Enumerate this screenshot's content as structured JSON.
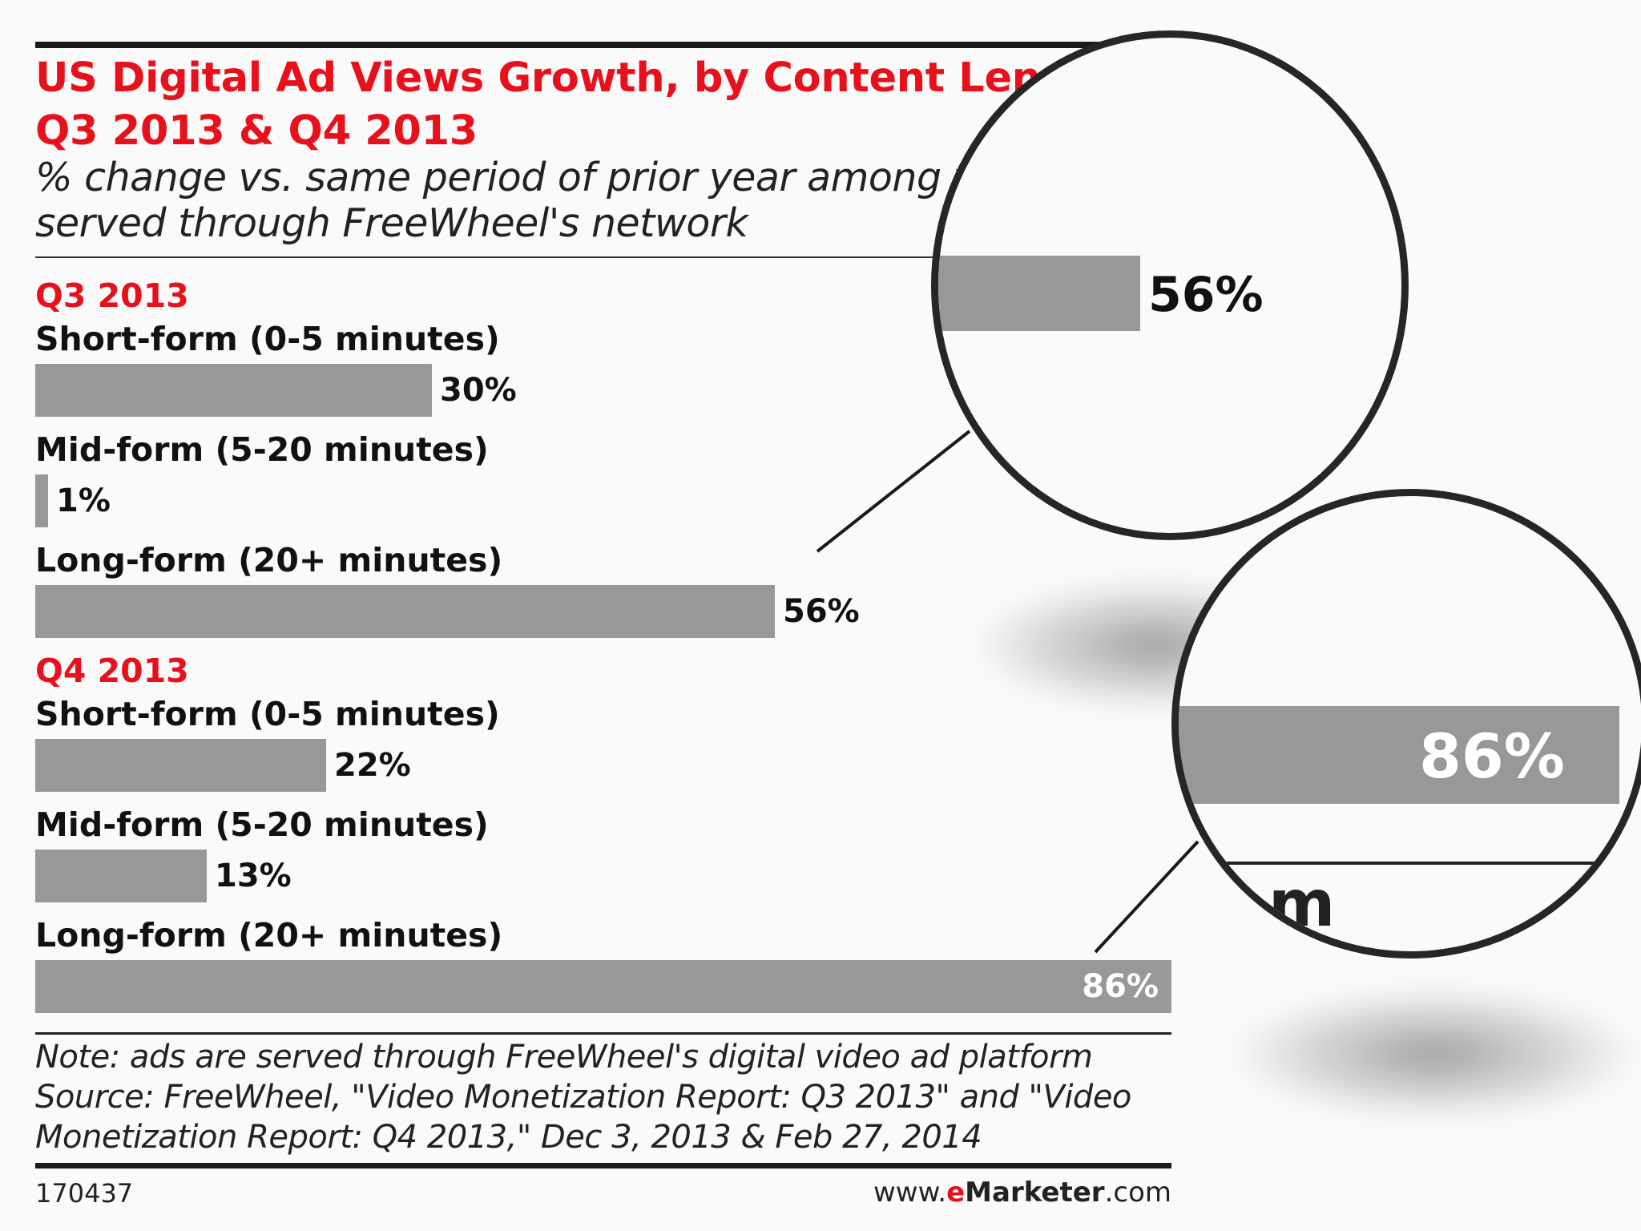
{
  "chart_data": {
    "type": "bar",
    "orientation": "horizontal",
    "title_line1": "US Digital Ad Views Growth, by Content Length",
    "title_line2": "Q3 2013 & Q4 2013",
    "subtitle_line1": "% change vs. same period of prior year among vide",
    "subtitle_line2": "served through FreeWheel's network",
    "xlim": [
      0,
      86
    ],
    "groups": [
      {
        "label": "Q3 2013",
        "items": [
          {
            "label": "Short-form (0-5 minutes)",
            "value": 30,
            "display": "30%"
          },
          {
            "label": "Mid-form (5-20 minutes)",
            "value": 1,
            "display": "1%"
          },
          {
            "label": "Long-form (20+ minutes)",
            "value": 56,
            "display": "56%"
          }
        ]
      },
      {
        "label": "Q4 2013",
        "items": [
          {
            "label": "Short-form (0-5 minutes)",
            "value": 22,
            "display": "22%"
          },
          {
            "label": "Mid-form (5-20 minutes)",
            "value": 13,
            "display": "13%"
          },
          {
            "label": "Long-form (20+ minutes)",
            "value": 86,
            "display": "86%"
          }
        ]
      }
    ],
    "notes": [
      "Note: ads are served through FreeWheel's digital video ad platform",
      "Source: FreeWheel, \"Video Monetization Report: Q3 2013\" and \"Video",
      "Monetization Report: Q4 2013,\" Dec 3, 2013 & Feb 27, 2014"
    ],
    "footer_id": "170437",
    "brand": {
      "prefix": "www.",
      "e": "e",
      "name": "Marketer",
      "suffix": ".com"
    }
  },
  "magnifiers": [
    {
      "label": "56%"
    },
    {
      "label": "86%",
      "glyph": "m"
    }
  ],
  "colors": {
    "accent": "#e8101a",
    "bar": "#999899",
    "text": "#111111",
    "background": "#fbfafb"
  }
}
